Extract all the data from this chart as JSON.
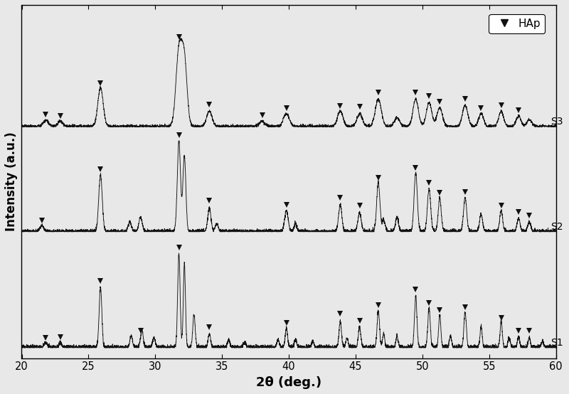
{
  "xlabel": "2θ (deg.)",
  "ylabel": "Intensity (a.u.)",
  "xlim": [
    20,
    60
  ],
  "x_ticks": [
    20,
    25,
    30,
    35,
    40,
    45,
    50,
    55,
    60
  ],
  "background_color": "#e8e8e8",
  "plot_bg_color": "#e8e8e8",
  "legend_label": "HAp",
  "series_labels": [
    "S3",
    "S2",
    "S1"
  ],
  "offsets": [
    0.0,
    0.0,
    0.0
  ],
  "line_color": "#111111",
  "marker_color": "#111111"
}
